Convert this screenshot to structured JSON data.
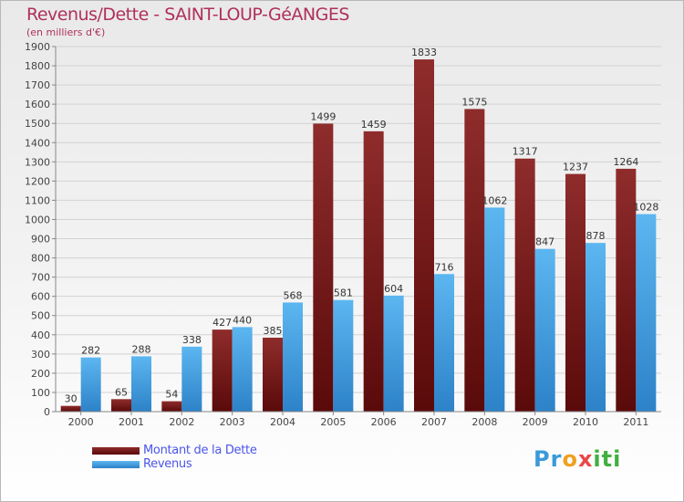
{
  "title": "Revenus/Dette - SAINT-LOUP-GéANGES",
  "subtitle": "(en milliers d'€)",
  "legend": {
    "items": [
      {
        "label": "Montant de la Dette",
        "color": "#7a1a1a"
      },
      {
        "label": "Revenus",
        "color": "#4aa3e0"
      }
    ]
  },
  "logo": {
    "parts": [
      "Pr",
      "o",
      "x",
      "iti"
    ]
  },
  "chart_data": {
    "type": "bar",
    "categories": [
      "2000",
      "2001",
      "2002",
      "2003",
      "2004",
      "2005",
      "2006",
      "2007",
      "2008",
      "2009",
      "2010",
      "2011"
    ],
    "series": [
      {
        "name": "Montant de la Dette",
        "color": "#7a1a1a",
        "values": [
          30,
          65,
          54,
          427,
          385,
          1499,
          1459,
          1833,
          1575,
          1317,
          1237,
          1264
        ]
      },
      {
        "name": "Revenus",
        "color": "#4aa3e0",
        "values": [
          282,
          288,
          338,
          440,
          568,
          581,
          604,
          716,
          1062,
          847,
          878,
          1028
        ]
      }
    ],
    "ylim": [
      0,
      1900
    ],
    "ytick_step": 100,
    "grid": true,
    "legend_position": "bottom-left"
  }
}
